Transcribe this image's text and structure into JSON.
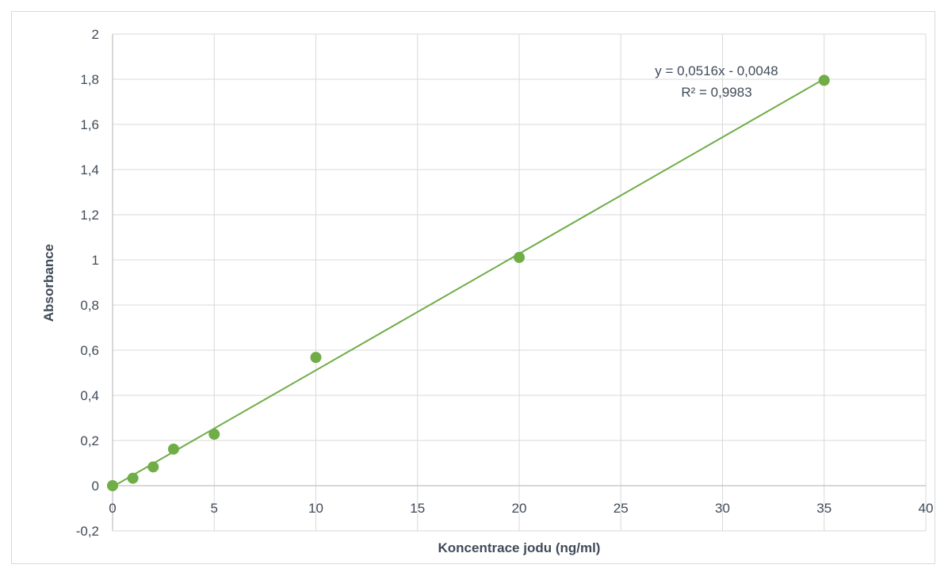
{
  "chart_data": {
    "type": "scatter",
    "title": "",
    "xlabel": "Koncentrace jodu (ng/ml)",
    "ylabel": "Absorbance",
    "xlim": [
      0,
      40
    ],
    "ylim": [
      -0.2,
      2
    ],
    "x_ticks": [
      0,
      5,
      10,
      15,
      20,
      25,
      30,
      35,
      40
    ],
    "y_ticks": [
      -0.2,
      0,
      0.2,
      0.4,
      0.6,
      0.8,
      1,
      1.2,
      1.4,
      1.6,
      1.8,
      2
    ],
    "x_tick_labels": [
      "0",
      "5",
      "10",
      "15",
      "20",
      "25",
      "30",
      "35",
      "40"
    ],
    "y_tick_labels": [
      "-0,2",
      "0",
      "0,2",
      "0,4",
      "0,6",
      "0,8",
      "1",
      "1,2",
      "1,4",
      "1,6",
      "1,8",
      "2"
    ],
    "grid": true,
    "legend": "none",
    "series": [
      {
        "x": [
          0,
          1,
          2,
          3,
          5,
          10,
          20,
          35
        ],
        "y": [
          0.0,
          0.033,
          0.083,
          0.162,
          0.228,
          0.568,
          1.011,
          1.795
        ],
        "color": "#70ad47"
      }
    ],
    "trendline": {
      "type": "linear",
      "slope": 0.0516,
      "intercept": -0.0048,
      "x_range": [
        0,
        35
      ],
      "equation_label": "y = 0,0516x - 0,0048",
      "r2_label": "R² = 0,9983",
      "color": "#70ad47"
    }
  }
}
